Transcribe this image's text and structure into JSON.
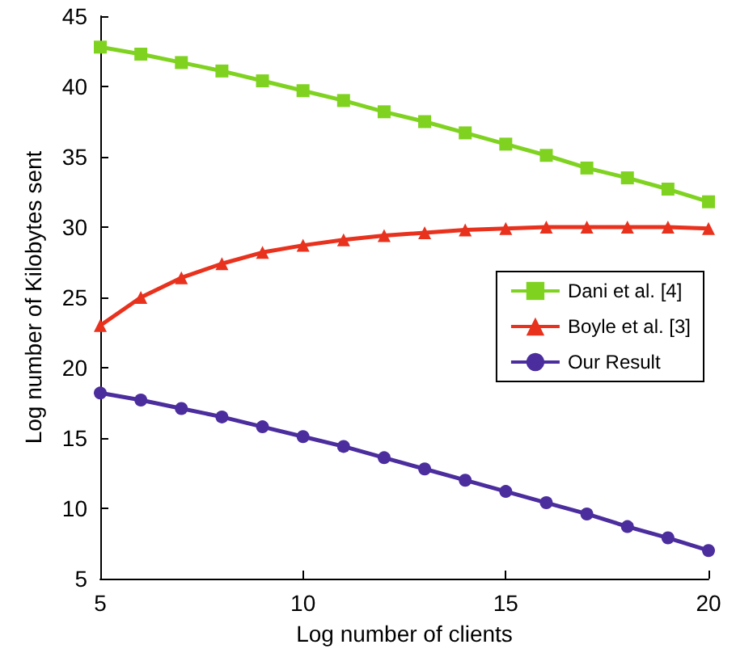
{
  "chart_data": {
    "type": "line",
    "xlabel": "Log number of clients",
    "ylabel": "Log number of Kilobytes sent",
    "x": [
      5,
      6,
      7,
      8,
      9,
      10,
      11,
      12,
      13,
      14,
      15,
      16,
      17,
      18,
      19,
      20
    ],
    "series": [
      {
        "name": "Dani et al. [4]",
        "color": "#7fd320",
        "marker": "square",
        "values": [
          42.8,
          42.3,
          41.7,
          41.1,
          40.4,
          39.7,
          39.0,
          38.2,
          37.5,
          36.7,
          35.9,
          35.1,
          34.2,
          33.5,
          32.7,
          31.8
        ]
      },
      {
        "name": "Boyle et al. [3]",
        "color": "#e8321e",
        "marker": "triangle",
        "values": [
          23.0,
          25.0,
          26.4,
          27.4,
          28.2,
          28.7,
          29.1,
          29.4,
          29.6,
          29.8,
          29.9,
          30.0,
          30.0,
          30.0,
          30.0,
          29.9
        ]
      },
      {
        "name": "Our Result",
        "color": "#4b2d9e",
        "marker": "circle",
        "values": [
          18.2,
          17.7,
          17.1,
          16.5,
          15.8,
          15.1,
          14.4,
          13.6,
          12.8,
          12.0,
          11.2,
          10.4,
          9.6,
          8.7,
          7.9,
          7.0
        ]
      }
    ],
    "xlim": [
      5,
      20
    ],
    "xticks": [
      5,
      10,
      15,
      20
    ],
    "ylim": [
      5,
      45
    ],
    "yticks": [
      5,
      10,
      15,
      20,
      25,
      30,
      35,
      40,
      45
    ],
    "grid": false,
    "legend": "right",
    "line_style": "solid"
  }
}
